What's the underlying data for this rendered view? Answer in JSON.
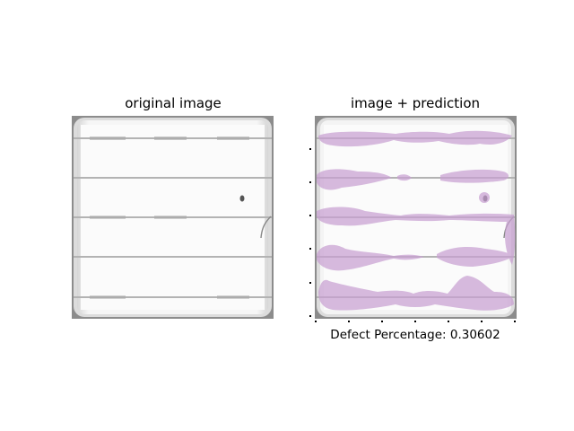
{
  "panels": {
    "left_title": "original image",
    "right_title": "image + prediction"
  },
  "caption": {
    "label": "Defect Percentage:",
    "value": "0.30602"
  },
  "image": {
    "subject": "solar cell electroluminescence image",
    "busbar_count": 5,
    "overlay_color": "#c8a0d2"
  }
}
